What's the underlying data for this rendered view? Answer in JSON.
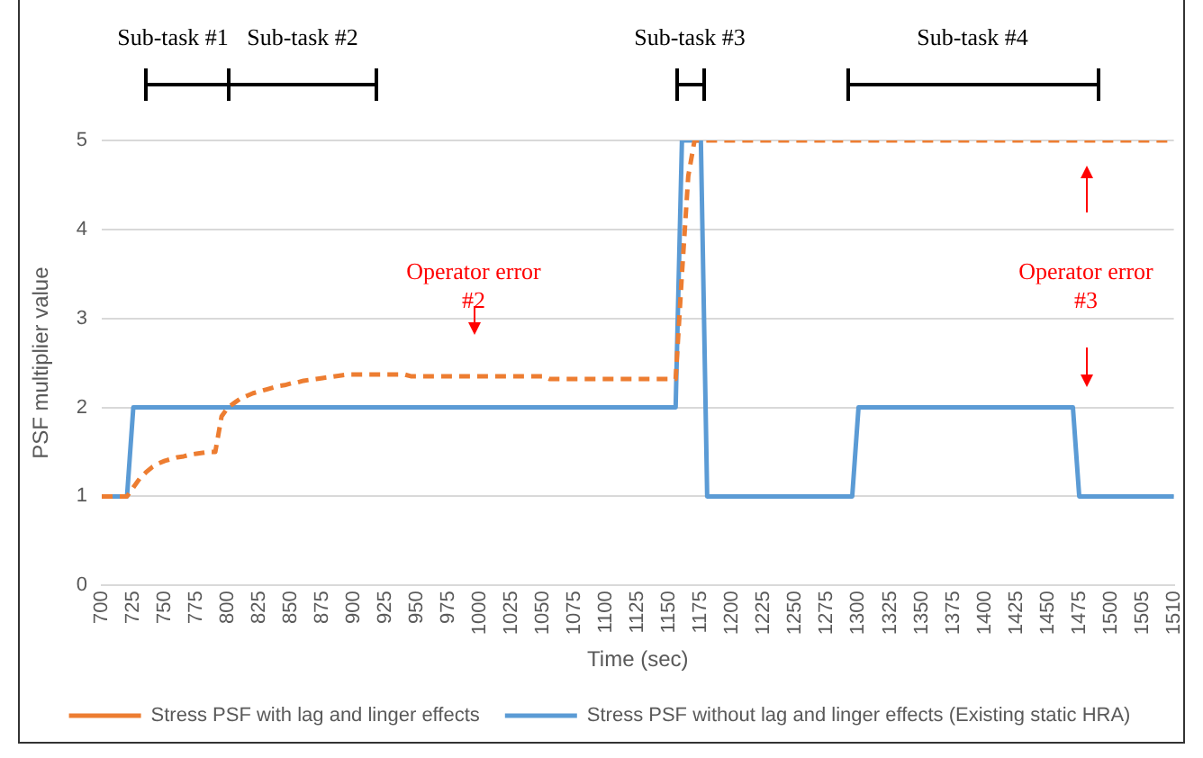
{
  "chart_data": {
    "type": "line",
    "xlabel": "Time (sec)",
    "ylabel": "PSF multiplier value",
    "categories": [
      "700",
      null,
      null,
      null,
      null,
      "725",
      null,
      null,
      null,
      null,
      "750",
      null,
      null,
      null,
      null,
      "775",
      null,
      null,
      null,
      null,
      "800",
      null,
      null,
      null,
      null,
      "825",
      null,
      null,
      null,
      null,
      "850",
      null,
      null,
      null,
      null,
      "875",
      null,
      null,
      null,
      null,
      "900",
      null,
      null,
      null,
      null,
      "925",
      null,
      null,
      null,
      null,
      "950",
      null,
      null,
      null,
      null,
      "975",
      null,
      null,
      null,
      null,
      "1000",
      null,
      null,
      null,
      null,
      "1025",
      null,
      null,
      null,
      null,
      "1050",
      null,
      null,
      null,
      null,
      "1075",
      null,
      null,
      null,
      null,
      "1100",
      null,
      null,
      null,
      null,
      "1125",
      null,
      null,
      null,
      null,
      "1150",
      null,
      null,
      null,
      null,
      "1175",
      null,
      null,
      null,
      null,
      "1200",
      null,
      null,
      null,
      null,
      "1225",
      null,
      null,
      null,
      null,
      "1250",
      null,
      null,
      null,
      null,
      "1275",
      null,
      null,
      null,
      null,
      "1300",
      null,
      null,
      null,
      null,
      "1325",
      null,
      null,
      null,
      null,
      "1350",
      null,
      null,
      null,
      null,
      "1375",
      null,
      null,
      null,
      null,
      "1400",
      null,
      null,
      null,
      null,
      "1425",
      null,
      null,
      null,
      null,
      "1450",
      null,
      null,
      null,
      null,
      "1475",
      null,
      null,
      null,
      null,
      "1500",
      null,
      null,
      null,
      null,
      "1505",
      null,
      null,
      null,
      null,
      "1510"
    ],
    "series": [
      {
        "name": "Stress PSF with lag and linger effects",
        "color": "#ed7d31",
        "line_style": "dashed",
        "values": [
          1,
          1,
          1,
          1,
          1,
          1.1,
          1.2,
          1.27,
          1.33,
          1.37,
          1.4,
          1.42,
          1.44,
          1.45,
          1.47,
          1.48,
          1.49,
          1.5,
          1.5,
          1.9,
          2,
          2.05,
          2.1,
          2.13,
          2.16,
          2.18,
          2.2,
          2.22,
          2.24,
          2.25,
          2.27,
          2.28,
          2.3,
          2.31,
          2.32,
          2.33,
          2.34,
          2.35,
          2.36,
          2.37,
          2.37,
          2.37,
          2.37,
          2.37,
          2.37,
          2.37,
          2.37,
          2.37,
          2.37,
          2.35,
          2.35,
          2.35,
          2.35,
          2.35,
          2.35,
          2.35,
          2.35,
          2.35,
          2.35,
          2.35,
          2.35,
          2.35,
          2.35,
          2.35,
          2.35,
          2.35,
          2.35,
          2.35,
          2.35,
          2.35,
          2.35,
          2.32,
          2.32,
          2.32,
          2.32,
          2.32,
          2.32,
          2.32,
          2.32,
          2.32,
          2.32,
          2.32,
          2.32,
          2.32,
          2.32,
          2.32,
          2.32,
          2.32,
          2.32,
          2.32,
          2.32,
          2.32,
          3.5,
          4.6,
          5,
          5,
          5,
          5,
          5,
          5,
          5,
          5,
          5,
          5,
          5,
          5,
          5,
          5,
          5,
          5,
          5,
          5,
          5,
          5,
          5,
          5,
          5,
          5,
          5,
          5,
          5,
          5,
          5,
          5,
          5,
          5,
          5,
          5,
          5,
          5,
          5,
          5,
          5,
          5,
          5,
          5,
          5,
          5,
          5,
          5,
          5,
          5,
          5,
          5,
          5,
          5,
          5,
          5,
          5,
          5,
          5,
          5,
          5,
          5,
          5,
          5,
          5,
          5,
          5,
          5,
          5,
          5,
          5,
          5,
          5,
          5,
          5,
          5,
          5,
          5,
          5
        ]
      },
      {
        "name": "Stress PSF without lag and linger effects (Existing static HRA)",
        "color": "#5b9bd5",
        "line_style": "solid",
        "values": [
          1,
          1,
          1,
          1,
          1,
          2,
          2,
          2,
          2,
          2,
          2,
          2,
          2,
          2,
          2,
          2,
          2,
          2,
          2,
          2,
          2,
          2,
          2,
          2,
          2,
          2,
          2,
          2,
          2,
          2,
          2,
          2,
          2,
          2,
          2,
          2,
          2,
          2,
          2,
          2,
          2,
          2,
          2,
          2,
          2,
          2,
          2,
          2,
          2,
          2,
          2,
          2,
          2,
          2,
          2,
          2,
          2,
          2,
          2,
          2,
          2,
          2,
          2,
          2,
          2,
          2,
          2,
          2,
          2,
          2,
          2,
          2,
          2,
          2,
          2,
          2,
          2,
          2,
          2,
          2,
          2,
          2,
          2,
          2,
          2,
          2,
          2,
          2,
          2,
          2,
          2,
          2,
          5,
          5,
          5,
          5,
          1,
          1,
          1,
          1,
          1,
          1,
          1,
          1,
          1,
          1,
          1,
          1,
          1,
          1,
          1,
          1,
          1,
          1,
          1,
          1,
          1,
          1,
          1,
          1,
          2,
          2,
          2,
          2,
          2,
          2,
          2,
          2,
          2,
          2,
          2,
          2,
          2,
          2,
          2,
          2,
          2,
          2,
          2,
          2,
          2,
          2,
          2,
          2,
          2,
          2,
          2,
          2,
          2,
          2,
          2,
          2,
          2,
          2,
          2,
          1,
          1,
          1,
          1,
          1,
          1,
          1,
          1,
          1,
          1,
          1,
          1,
          1,
          1,
          1,
          1
        ]
      }
    ],
    "ylim": [
      0,
      5
    ],
    "yticks": [
      0,
      1,
      2,
      3,
      4,
      5
    ],
    "grid": "y",
    "legend": "bottom",
    "marker": "none",
    "annotations": [
      "Sub-task #1",
      "Sub-task #2",
      "Sub-task #3",
      "Sub-task #4",
      "Operator error #2",
      "Operator error #3"
    ]
  }
}
